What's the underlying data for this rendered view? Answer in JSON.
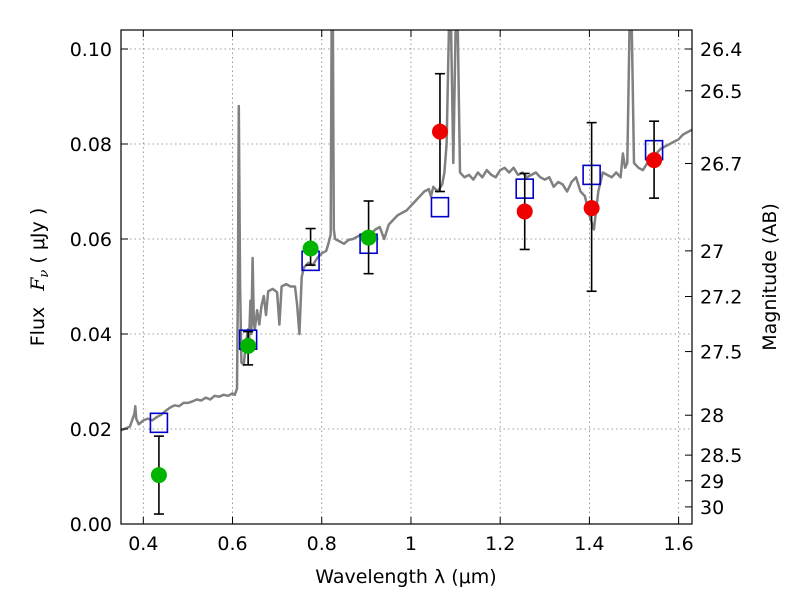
{
  "chart_data": {
    "type": "scatter",
    "title": "",
    "xlabel": "Wavelength  λ (μm)",
    "ylabel": "Flux  F_ν  ( μJy )",
    "ylabel_parts": {
      "a": "Flux",
      "b": "F",
      "c": "ν",
      "d": "  ( μ",
      "e": "Jy )"
    },
    "y2label": "Magnitude (AB)",
    "xlim": [
      0.35,
      1.63
    ],
    "ylim": [
      0.0,
      0.104
    ],
    "grid": true,
    "xticks": [
      0.4,
      0.6,
      0.8,
      1.0,
      1.2,
      1.4,
      1.6
    ],
    "xtick_labels": [
      "0.4",
      "0.6",
      "0.8",
      "1",
      "1.2",
      "1.4",
      "1.6"
    ],
    "yticks": [
      0.0,
      0.02,
      0.04,
      0.06,
      0.08,
      0.1
    ],
    "ytick_labels": [
      "0.00",
      "0.02",
      "0.04",
      "0.06",
      "0.08",
      "0.10"
    ],
    "mag_ticks": [
      {
        "label": "26.4",
        "flux": 0.1
      },
      {
        "label": "26.5",
        "flux": 0.0912
      },
      {
        "label": "26.7",
        "flux": 0.0759
      },
      {
        "label": "27",
        "flux": 0.0575
      },
      {
        "label": "27.2",
        "flux": 0.0479
      },
      {
        "label": "27.5",
        "flux": 0.0363
      },
      {
        "label": "28",
        "flux": 0.0229
      },
      {
        "label": "28.5",
        "flux": 0.0145
      },
      {
        "label": "29",
        "flux": 0.0091
      },
      {
        "label": "30",
        "flux": 0.0036
      }
    ],
    "colors": {
      "model": "#808080",
      "model_flux": "#0000cc",
      "green": "#00b400",
      "red": "#ee0000",
      "errorbar": "#000000",
      "grid": "#808080"
    },
    "model_sed": [
      [
        0.35,
        0.0197
      ],
      [
        0.36,
        0.0201
      ],
      [
        0.37,
        0.0205
      ],
      [
        0.38,
        0.0232
      ],
      [
        0.382,
        0.0248
      ],
      [
        0.384,
        0.0222
      ],
      [
        0.39,
        0.021
      ],
      [
        0.4,
        0.0218
      ],
      [
        0.41,
        0.0222
      ],
      [
        0.42,
        0.0218
      ],
      [
        0.43,
        0.0225
      ],
      [
        0.44,
        0.023
      ],
      [
        0.45,
        0.0238
      ],
      [
        0.46,
        0.0245
      ],
      [
        0.47,
        0.025
      ],
      [
        0.48,
        0.0248
      ],
      [
        0.49,
        0.0255
      ],
      [
        0.5,
        0.0255
      ],
      [
        0.51,
        0.0258
      ],
      [
        0.52,
        0.0262
      ],
      [
        0.53,
        0.026
      ],
      [
        0.54,
        0.0266
      ],
      [
        0.55,
        0.0262
      ],
      [
        0.56,
        0.027
      ],
      [
        0.57,
        0.0268
      ],
      [
        0.58,
        0.0272
      ],
      [
        0.59,
        0.027
      ],
      [
        0.6,
        0.0275
      ],
      [
        0.605,
        0.0272
      ],
      [
        0.61,
        0.0285
      ],
      [
        0.612,
        0.05
      ],
      [
        0.614,
        0.088
      ],
      [
        0.617,
        0.05
      ],
      [
        0.62,
        0.034
      ],
      [
        0.625,
        0.0335
      ],
      [
        0.63,
        0.038
      ],
      [
        0.635,
        0.041
      ],
      [
        0.637,
        0.038
      ],
      [
        0.64,
        0.047
      ],
      [
        0.642,
        0.04
      ],
      [
        0.645,
        0.056
      ],
      [
        0.648,
        0.042
      ],
      [
        0.65,
        0.041
      ],
      [
        0.655,
        0.045
      ],
      [
        0.66,
        0.042
      ],
      [
        0.665,
        0.046
      ],
      [
        0.67,
        0.048
      ],
      [
        0.675,
        0.044
      ],
      [
        0.68,
        0.049
      ],
      [
        0.69,
        0.0495
      ],
      [
        0.7,
        0.0488
      ],
      [
        0.705,
        0.042
      ],
      [
        0.71,
        0.05
      ],
      [
        0.72,
        0.0505
      ],
      [
        0.73,
        0.05
      ],
      [
        0.74,
        0.05
      ],
      [
        0.745,
        0.046
      ],
      [
        0.75,
        0.04
      ],
      [
        0.755,
        0.052
      ],
      [
        0.76,
        0.054
      ],
      [
        0.77,
        0.055
      ],
      [
        0.78,
        0.0545
      ],
      [
        0.79,
        0.056
      ],
      [
        0.8,
        0.057
      ],
      [
        0.81,
        0.0575
      ],
      [
        0.815,
        0.059
      ],
      [
        0.82,
        0.061
      ],
      [
        0.822,
        0.104
      ],
      [
        0.825,
        0.104
      ],
      [
        0.827,
        0.062
      ],
      [
        0.83,
        0.06
      ],
      [
        0.84,
        0.0595
      ],
      [
        0.85,
        0.059
      ],
      [
        0.86,
        0.0598
      ],
      [
        0.87,
        0.06
      ],
      [
        0.88,
        0.0605
      ],
      [
        0.89,
        0.061
      ],
      [
        0.9,
        0.0615
      ],
      [
        0.91,
        0.061
      ],
      [
        0.92,
        0.062
      ],
      [
        0.93,
        0.0625
      ],
      [
        0.94,
        0.06
      ],
      [
        0.95,
        0.063
      ],
      [
        0.96,
        0.064
      ],
      [
        0.97,
        0.065
      ],
      [
        0.98,
        0.0655
      ],
      [
        0.99,
        0.066
      ],
      [
        1.0,
        0.067
      ],
      [
        1.01,
        0.068
      ],
      [
        1.02,
        0.069
      ],
      [
        1.03,
        0.07
      ],
      [
        1.04,
        0.0705
      ],
      [
        1.045,
        0.069
      ],
      [
        1.05,
        0.071
      ],
      [
        1.06,
        0.07
      ],
      [
        1.07,
        0.0715
      ],
      [
        1.075,
        0.074
      ],
      [
        1.08,
        0.08
      ],
      [
        1.085,
        0.104
      ],
      [
        1.09,
        0.104
      ],
      [
        1.095,
        0.076
      ],
      [
        1.1,
        0.104
      ],
      [
        1.105,
        0.104
      ],
      [
        1.11,
        0.074
      ],
      [
        1.12,
        0.073
      ],
      [
        1.13,
        0.0735
      ],
      [
        1.14,
        0.0725
      ],
      [
        1.15,
        0.074
      ],
      [
        1.16,
        0.073
      ],
      [
        1.17,
        0.0745
      ],
      [
        1.18,
        0.0735
      ],
      [
        1.19,
        0.073
      ],
      [
        1.2,
        0.0745
      ],
      [
        1.21,
        0.075
      ],
      [
        1.22,
        0.074
      ],
      [
        1.23,
        0.075
      ],
      [
        1.24,
        0.0735
      ],
      [
        1.25,
        0.074
      ],
      [
        1.26,
        0.073
      ],
      [
        1.27,
        0.0735
      ],
      [
        1.28,
        0.074
      ],
      [
        1.29,
        0.073
      ],
      [
        1.3,
        0.0725
      ],
      [
        1.31,
        0.073
      ],
      [
        1.32,
        0.071
      ],
      [
        1.33,
        0.072
      ],
      [
        1.34,
        0.0715
      ],
      [
        1.35,
        0.07
      ],
      [
        1.36,
        0.072
      ],
      [
        1.37,
        0.073
      ],
      [
        1.38,
        0.07
      ],
      [
        1.39,
        0.069
      ],
      [
        1.4,
        0.065
      ],
      [
        1.41,
        0.062
      ],
      [
        1.42,
        0.07
      ],
      [
        1.43,
        0.074
      ],
      [
        1.44,
        0.0735
      ],
      [
        1.45,
        0.073
      ],
      [
        1.46,
        0.074
      ],
      [
        1.47,
        0.073
      ],
      [
        1.475,
        0.078
      ],
      [
        1.48,
        0.075
      ],
      [
        1.485,
        0.076
      ],
      [
        1.49,
        0.104
      ],
      [
        1.495,
        0.104
      ],
      [
        1.5,
        0.076
      ],
      [
        1.51,
        0.075
      ],
      [
        1.52,
        0.0745
      ],
      [
        1.53,
        0.076
      ],
      [
        1.54,
        0.077
      ],
      [
        1.55,
        0.078
      ],
      [
        1.56,
        0.079
      ],
      [
        1.57,
        0.0795
      ],
      [
        1.58,
        0.08
      ],
      [
        1.59,
        0.0805
      ],
      [
        1.6,
        0.081
      ],
      [
        1.61,
        0.082
      ],
      [
        1.62,
        0.0825
      ],
      [
        1.63,
        0.083
      ]
    ],
    "model_fluxes": [
      {
        "x": 0.435,
        "y": 0.0213
      },
      {
        "x": 0.635,
        "y": 0.0388
      },
      {
        "x": 0.775,
        "y": 0.0554
      },
      {
        "x": 0.905,
        "y": 0.059
      },
      {
        "x": 1.065,
        "y": 0.0667
      },
      {
        "x": 1.255,
        "y": 0.0706
      },
      {
        "x": 1.405,
        "y": 0.0735
      },
      {
        "x": 1.545,
        "y": 0.0787
      }
    ],
    "observed": [
      {
        "x": 0.435,
        "y": 0.0103,
        "err_lo": 0.0021,
        "err_hi": 0.0185,
        "color": "green"
      },
      {
        "x": 0.635,
        "y": 0.0375,
        "err_lo": 0.0335,
        "err_hi": 0.0405,
        "color": "green"
      },
      {
        "x": 0.775,
        "y": 0.058,
        "err_lo": 0.0545,
        "err_hi": 0.0622,
        "color": "green"
      },
      {
        "x": 0.905,
        "y": 0.0603,
        "err_lo": 0.0527,
        "err_hi": 0.068,
        "color": "green"
      },
      {
        "x": 1.065,
        "y": 0.0826,
        "err_lo": 0.07,
        "err_hi": 0.0948,
        "color": "red"
      },
      {
        "x": 1.255,
        "y": 0.0658,
        "err_lo": 0.0578,
        "err_hi": 0.0738,
        "color": "red"
      },
      {
        "x": 1.405,
        "y": 0.0665,
        "err_lo": 0.049,
        "err_hi": 0.0845,
        "color": "red"
      },
      {
        "x": 1.545,
        "y": 0.0766,
        "err_lo": 0.0686,
        "err_hi": 0.0848,
        "color": "red"
      }
    ]
  }
}
